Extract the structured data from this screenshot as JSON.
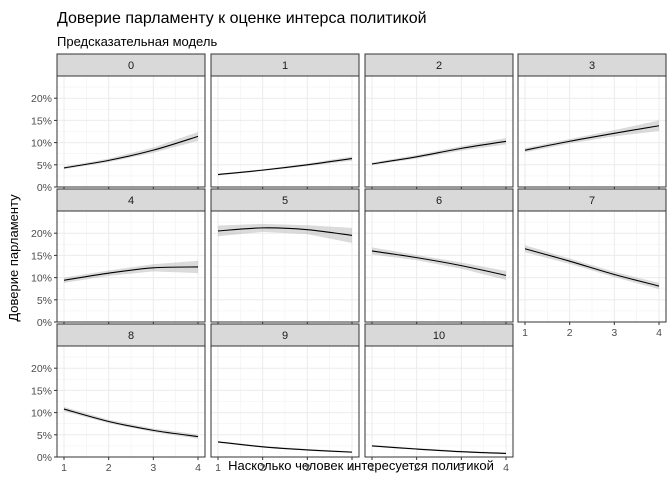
{
  "chart_data": {
    "type": "line",
    "title": "Доверие парламенту к оценке интерса политикой",
    "subtitle": "Предсказательная модель",
    "xlabel": "Насколько человек интересуется политикой",
    "ylabel": "Доверие парламенту",
    "x": [
      1,
      2,
      3,
      4
    ],
    "x_ticks": [
      "1",
      "2",
      "3",
      "4"
    ],
    "xlim": [
      1,
      4
    ],
    "ylim": [
      0,
      0.25
    ],
    "y_ticks": [
      0,
      0.05,
      0.1,
      0.15,
      0.2
    ],
    "y_tick_labels": [
      "0%",
      "5%",
      "10%",
      "15%",
      "20%"
    ],
    "grid": true,
    "facets": [
      {
        "label": "0",
        "values": [
          0.043,
          0.06,
          0.083,
          0.114
        ],
        "lower": [
          0.04,
          0.056,
          0.077,
          0.104
        ],
        "upper": [
          0.046,
          0.064,
          0.089,
          0.124
        ]
      },
      {
        "label": "1",
        "values": [
          0.028,
          0.038,
          0.05,
          0.064
        ],
        "lower": [
          0.026,
          0.036,
          0.047,
          0.059
        ],
        "upper": [
          0.03,
          0.04,
          0.053,
          0.069
        ]
      },
      {
        "label": "2",
        "values": [
          0.052,
          0.068,
          0.087,
          0.103
        ],
        "lower": [
          0.049,
          0.064,
          0.082,
          0.096
        ],
        "upper": [
          0.055,
          0.072,
          0.092,
          0.11
        ]
      },
      {
        "label": "3",
        "values": [
          0.083,
          0.103,
          0.121,
          0.138
        ],
        "lower": [
          0.078,
          0.098,
          0.114,
          0.126
        ],
        "upper": [
          0.088,
          0.108,
          0.128,
          0.15
        ]
      },
      {
        "label": "4",
        "values": [
          0.094,
          0.11,
          0.122,
          0.124
        ],
        "lower": [
          0.088,
          0.104,
          0.114,
          0.11
        ],
        "upper": [
          0.1,
          0.116,
          0.13,
          0.138
        ]
      },
      {
        "label": "5",
        "values": [
          0.205,
          0.212,
          0.208,
          0.195
        ],
        "lower": [
          0.193,
          0.203,
          0.198,
          0.178
        ],
        "upper": [
          0.217,
          0.221,
          0.218,
          0.212
        ]
      },
      {
        "label": "6",
        "values": [
          0.16,
          0.145,
          0.127,
          0.105
        ],
        "lower": [
          0.152,
          0.139,
          0.12,
          0.095
        ],
        "upper": [
          0.168,
          0.151,
          0.134,
          0.115
        ]
      },
      {
        "label": "7",
        "values": [
          0.165,
          0.137,
          0.107,
          0.081
        ],
        "lower": [
          0.157,
          0.131,
          0.101,
          0.074
        ],
        "upper": [
          0.173,
          0.143,
          0.113,
          0.088
        ]
      },
      {
        "label": "8",
        "values": [
          0.108,
          0.08,
          0.06,
          0.046
        ],
        "lower": [
          0.103,
          0.076,
          0.056,
          0.041
        ],
        "upper": [
          0.113,
          0.084,
          0.064,
          0.051
        ]
      },
      {
        "label": "9",
        "values": [
          0.034,
          0.023,
          0.016,
          0.011
        ],
        "lower": [
          0.032,
          0.021,
          0.014,
          0.009
        ],
        "upper": [
          0.036,
          0.025,
          0.018,
          0.013
        ]
      },
      {
        "label": "10",
        "values": [
          0.025,
          0.018,
          0.012,
          0.008
        ],
        "lower": [
          0.023,
          0.016,
          0.01,
          0.006
        ],
        "upper": [
          0.027,
          0.02,
          0.014,
          0.01
        ]
      }
    ]
  }
}
